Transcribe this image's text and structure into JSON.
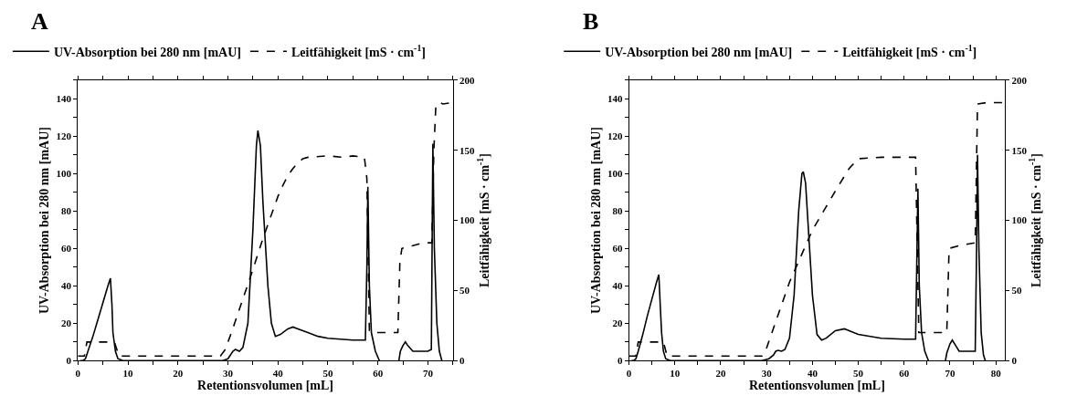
{
  "chart_data": [
    {
      "type": "line",
      "title": "A",
      "xlabel": "Retentionsvolumen [mL]",
      "ylabel": "UV-Absorption bei 280 nm [mAU]",
      "y2label": "Leitfähigkeit [mS · cm$^{-1}$]",
      "xlim": [
        0,
        75
      ],
      "xticks": [
        0,
        {
          "value": 5,
          "label": null
        },
        10,
        {
          "value": 15,
          "label": null
        },
        20,
        {
          "value": 25,
          "label": null
        },
        30,
        {
          "value": 35,
          "label": null
        },
        40,
        {
          "value": 45,
          "label": null
        },
        50,
        {
          "value": 55,
          "label": null
        },
        60,
        {
          "value": 65,
          "label": null
        },
        70,
        {
          "value": 75,
          "label": null
        }
      ],
      "ylim": [
        0,
        150
      ],
      "yticks": [
        0,
        {
          "value": 10,
          "label": null
        },
        20,
        {
          "value": 30,
          "label": null
        },
        40,
        {
          "value": 50,
          "label": null
        },
        60,
        {
          "value": 70,
          "label": null
        },
        80,
        {
          "value": 90,
          "label": null
        },
        100,
        {
          "value": 110,
          "label": null
        },
        120,
        {
          "value": 130,
          "label": null
        },
        140,
        {
          "value": 150,
          "label": null
        }
      ],
      "y2lim": [
        0,
        200
      ],
      "y2ticks": [
        0,
        50,
        100,
        150,
        200
      ],
      "legend": "top",
      "marker": "none",
      "series": [
        {
          "name": "UV-Absorption bei 280 nm [mAU]",
          "color": "#000000",
          "line_style": "solid",
          "x": [
            0.5,
            1,
            1.5,
            2,
            3,
            4,
            5,
            6,
            6.5,
            6.8,
            7,
            7.5,
            8,
            9,
            20,
            29,
            30,
            31,
            31.5,
            32.3,
            33,
            34,
            35,
            35.7,
            36,
            36.5,
            37,
            38,
            38.7,
            39.5,
            40.5,
            42,
            43,
            44,
            46,
            48,
            50,
            55,
            57.5,
            57.8,
            58,
            58.3,
            58.7,
            59.5,
            60.3,
            62,
            64.2,
            64.5,
            65,
            65.5,
            66,
            67,
            70,
            70.7,
            71,
            71.3,
            71.8,
            72.3,
            72.8
          ],
          "values": [
            0,
            0,
            1,
            5,
            13,
            22,
            31,
            40,
            44,
            30,
            15,
            5,
            1,
            0,
            0,
            0,
            1,
            5,
            6,
            5,
            7,
            20,
            70,
            115,
            123,
            115,
            85,
            40,
            20,
            13,
            14,
            17,
            18,
            17,
            15,
            13,
            12,
            11,
            11,
            50,
            93,
            40,
            15,
            5,
            0,
            null,
            0,
            5,
            8,
            10,
            8,
            5,
            5,
            6,
            116,
            60,
            20,
            5,
            0
          ]
        },
        {
          "name": "Leitfähigkeit [mS · cm$^{-1}$]",
          "color": "#000000",
          "line_style": "dashed",
          "axis": "y2",
          "x": [
            0,
            1.3,
            1.8,
            7.3,
            8.2,
            28.5,
            29.5,
            31,
            33,
            35,
            37,
            39,
            40,
            41,
            42,
            43,
            44,
            45,
            46,
            50,
            53,
            55,
            57.3,
            57.8,
            58.3,
            60,
            62,
            64,
            64.4,
            64.8,
            67,
            69,
            70.8,
            71.2,
            71.6,
            72.5,
            73,
            75
          ],
          "values": [
            3.3,
            3.3,
            13.3,
            13.3,
            3.3,
            3.3,
            8,
            23,
            44,
            65,
            87,
            107,
            117,
            125,
            132,
            137,
            141,
            144,
            145,
            146,
            145,
            146,
            145,
            130,
            21,
            20,
            20,
            20,
            70,
            80,
            82,
            84,
            84,
            150,
            182,
            184,
            183,
            184
          ]
        }
      ]
    },
    {
      "type": "line",
      "title": "B",
      "xlabel": "Retentionsvolumen [mL]",
      "ylabel": "UV-Absorption bei 280 nm [mAU]",
      "y2label": "Leitfähigkeit [mS · cm$^{-1}$]",
      "xlim": [
        0,
        82
      ],
      "xticks": [
        0,
        {
          "value": 5,
          "label": null
        },
        10,
        {
          "value": 15,
          "label": null
        },
        20,
        {
          "value": 25,
          "label": null
        },
        30,
        {
          "value": 35,
          "label": null
        },
        40,
        {
          "value": 45,
          "label": null
        },
        50,
        {
          "value": 55,
          "label": null
        },
        60,
        {
          "value": 65,
          "label": null
        },
        70,
        {
          "value": 75,
          "label": null
        },
        80
      ],
      "ylim": [
        0,
        150
      ],
      "yticks": [
        0,
        {
          "value": 10,
          "label": null
        },
        20,
        {
          "value": 30,
          "label": null
        },
        40,
        {
          "value": 50,
          "label": null
        },
        60,
        {
          "value": 70,
          "label": null
        },
        80,
        {
          "value": 90,
          "label": null
        },
        100,
        {
          "value": 110,
          "label": null
        },
        120,
        {
          "value": 130,
          "label": null
        },
        140,
        {
          "value": 150,
          "label": null
        }
      ],
      "y2lim": [
        0,
        200
      ],
      "y2ticks": [
        0,
        50,
        100,
        150,
        200
      ],
      "legend": "top",
      "marker": "none",
      "series": [
        {
          "name": "UV-Absorption bei 280 nm [mAU]",
          "color": "#000000",
          "line_style": "solid",
          "x": [
            0.5,
            1,
            1.5,
            2,
            3,
            4,
            5,
            6,
            6.5,
            6.8,
            7.1,
            7.5,
            8,
            9,
            29,
            30.5,
            31.5,
            32,
            32.5,
            33.3,
            34,
            35,
            36,
            37,
            37.7,
            38,
            38.5,
            39,
            40,
            41,
            42,
            43,
            45,
            47,
            48,
            50,
            55,
            60,
            62.5,
            62.8,
            63,
            63.3,
            63.8,
            64.5,
            65.3,
            67,
            69,
            69.3,
            70,
            70.5,
            71,
            72,
            75.5,
            75.8,
            76,
            76.3,
            76.8,
            77.3,
            77.7
          ],
          "values": [
            0,
            0,
            1,
            5,
            14,
            24,
            33,
            42,
            46,
            30,
            15,
            5,
            1,
            0,
            0,
            1,
            3,
            5,
            5.5,
            5,
            6,
            12,
            35,
            80,
            100,
            101,
            95,
            75,
            35,
            14,
            11,
            12,
            16,
            17,
            16,
            14,
            12,
            11.5,
            11.5,
            60,
            92,
            40,
            15,
            5,
            0,
            null,
            0,
            4,
            9,
            11,
            9,
            5,
            5,
            60,
            110,
            60,
            15,
            3,
            0
          ]
        },
        {
          "name": "Leitfähigkeit [mS · cm$^{-1}$]",
          "color": "#000000",
          "line_style": "dashed",
          "axis": "y2",
          "x": [
            0,
            1.5,
            2,
            7.5,
            8.3,
            29,
            30,
            35,
            40,
            45,
            48,
            50,
            55,
            60,
            62.5,
            63.2,
            66,
            69.3,
            69.8,
            72,
            75.5,
            76,
            78,
            82
          ],
          "values": [
            3.3,
            3.3,
            13.3,
            13.3,
            3.3,
            3.3,
            9,
            56,
            93,
            121,
            137,
            144,
            145,
            145,
            145,
            20,
            20,
            20,
            80,
            82,
            84,
            183,
            184,
            184
          ]
        }
      ]
    }
  ]
}
